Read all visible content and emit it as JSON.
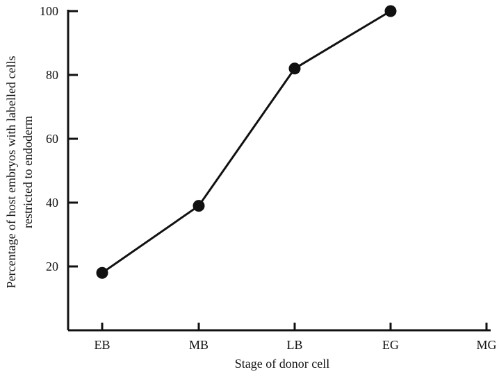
{
  "chart_data": {
    "type": "line",
    "categories": [
      "EB",
      "MB",
      "LB",
      "EG",
      "MG"
    ],
    "series": [
      {
        "values": [
          18,
          39,
          82,
          100,
          null
        ]
      }
    ],
    "xlabel": "Stage of donor cell",
    "ylabel": [
      "Percentage of host embryos with labelled cells",
      "restricted to endoderm"
    ],
    "ylim": [
      0,
      100
    ],
    "yticks": [
      20,
      40,
      60,
      80,
      100
    ],
    "grid": false,
    "legend": "none",
    "colors": {
      "line": "#111111",
      "marker": "#111111",
      "axis": "#111111"
    }
  }
}
